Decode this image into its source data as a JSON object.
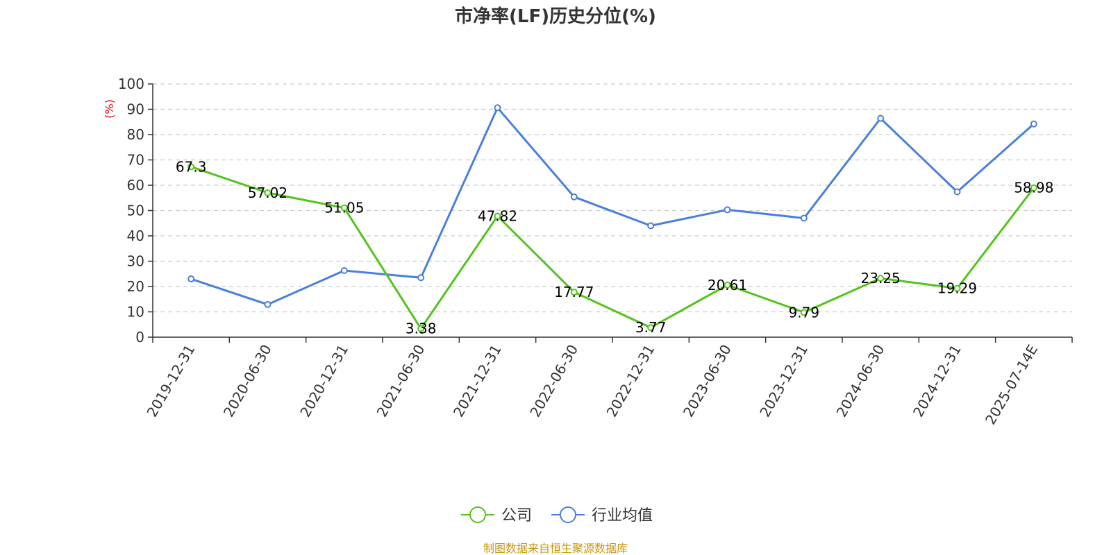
{
  "chart_data": {
    "type": "line",
    "title": "市净率(LF)历史分位(%)",
    "ylabel": "(%)",
    "xlabel": "",
    "ylim": [
      0,
      100
    ],
    "yticks": [
      0,
      10,
      20,
      30,
      40,
      50,
      60,
      70,
      80,
      90,
      100
    ],
    "grid": true,
    "legend_position": "bottom-center",
    "categories": [
      "2019-12-31",
      "2020-06-30",
      "2020-12-31",
      "2021-06-30",
      "2021-12-31",
      "2022-06-30",
      "2022-12-31",
      "2023-06-30",
      "2023-12-31",
      "2024-06-30",
      "2024-12-31",
      "2025-07-14E"
    ],
    "series": [
      {
        "name": "公司",
        "color": "#52c41a",
        "values": [
          67.3,
          57.02,
          51.05,
          3.38,
          47.82,
          17.77,
          3.77,
          20.61,
          9.79,
          23.25,
          19.29,
          58.98
        ],
        "labels": [
          "67.3",
          "57.02",
          "51.05",
          "3.38",
          "47.82",
          "17.77",
          "3.77",
          "20.61",
          "9.79",
          "23.25",
          "19.29",
          "58.98"
        ]
      },
      {
        "name": "行业均值",
        "color": "#4a7fdc",
        "values": [
          23.0,
          12.9,
          26.3,
          23.5,
          90.6,
          55.4,
          44.0,
          50.3,
          47.0,
          86.4,
          57.4,
          84.2
        ]
      }
    ],
    "source": "制图数据来自恒生聚源数据库"
  }
}
